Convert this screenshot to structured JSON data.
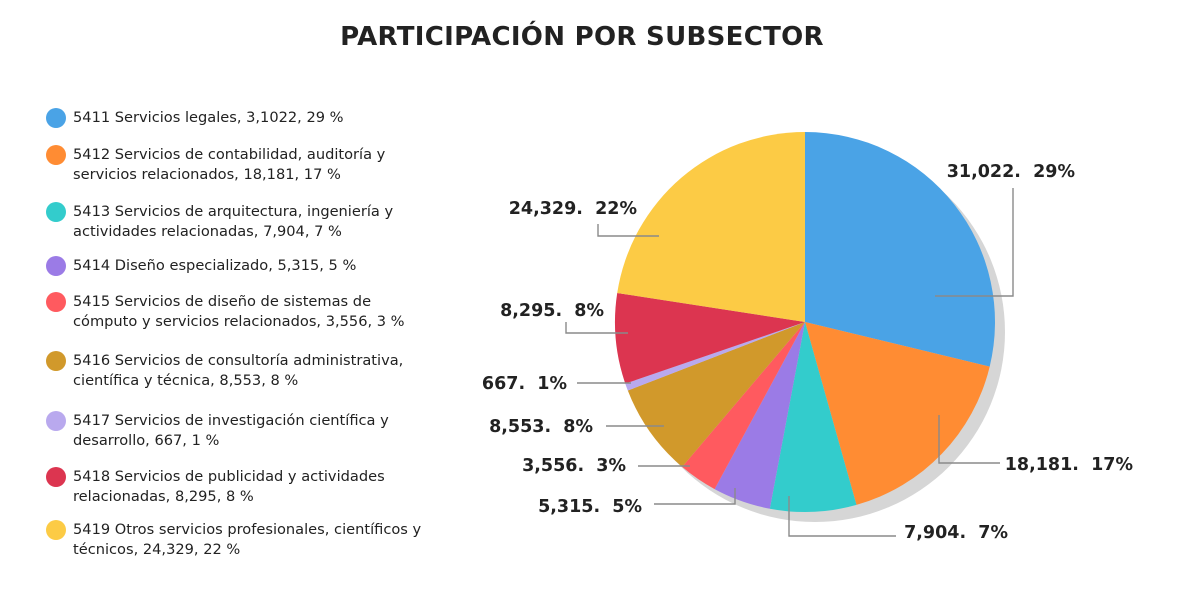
{
  "title": "PARTICIPACIÓN POR SUBSECTOR",
  "legend_items": [
    {
      "text": "5411 Servicios legales, 3,1022, 29 %",
      "color": "#4aa3e6"
    },
    {
      "text": "5412 Servicios de contabilidad, auditoría y servicios relacionados, 18,181, 17 %",
      "color": "#ff8c33"
    },
    {
      "text": "5413 Servicios de arquitectura, ingeniería y actividades relacionadas, 7,904, 7 %",
      "color": "#33cccc"
    },
    {
      "text": "5414 Diseño especializado, 5,315, 5 %",
      "color": "#9b7be6"
    },
    {
      "text": "5415 Servicios de diseño de sistemas de cómputo y servicios relacionados, 3,556, 3 %",
      "color": "#ff5a5f"
    },
    {
      "text": "5416 Servicios de consultoría administrativa, científica y técnica, 8,553, 8 %",
      "color": "#d1992b"
    },
    {
      "text": "5417 Servicios de investigación científica y desarrollo, 667, 1 %",
      "color": "#b9a9ee"
    },
    {
      "text": "5418 Servicios de publicidad y actividades relacionadas, 8,295, 8 %",
      "color": "#dc3550"
    },
    {
      "text": "5419 Otros servicios profesionales, científicos y técnicos, 24,329, 22 %",
      "color": "#fccb45"
    }
  ],
  "chart_data": {
    "type": "pie",
    "title": "PARTICIPACIÓN POR SUBSECTOR",
    "categories": [
      "5411 Servicios legales",
      "5412 Servicios de contabilidad, auditoría y servicios relacionados",
      "5413 Servicios de arquitectura, ingeniería y actividades relacionadas",
      "5414 Diseño especializado",
      "5415 Servicios de diseño de sistemas de cómputo y servicios relacionados",
      "5416 Servicios de consultoría administrativa, científica y técnica",
      "5417 Servicios de investigación científica y desarrollo",
      "5418 Servicios de publicidad y actividades relacionadas",
      "5419 Otros servicios profesionales, científicos y técnicos"
    ],
    "values": [
      31022,
      18181,
      7904,
      5315,
      3556,
      8553,
      667,
      8295,
      24329
    ],
    "percentages": [
      29,
      17,
      7,
      5,
      3,
      8,
      1,
      8,
      22
    ],
    "labels": [
      "31,022.  29%",
      "18,181.  17%",
      "7,904.  7%",
      "5,315.  5%",
      "3,556.  3%",
      "8,553.  8%",
      "667.  1%",
      "8,295.  8%",
      "24,329.  22%"
    ],
    "colors": [
      "#4aa3e6",
      "#ff8c33",
      "#33cccc",
      "#9b7be6",
      "#ff5a5f",
      "#d1992b",
      "#b9a9ee",
      "#dc3550",
      "#fccb45"
    ],
    "legend_position": "left"
  }
}
